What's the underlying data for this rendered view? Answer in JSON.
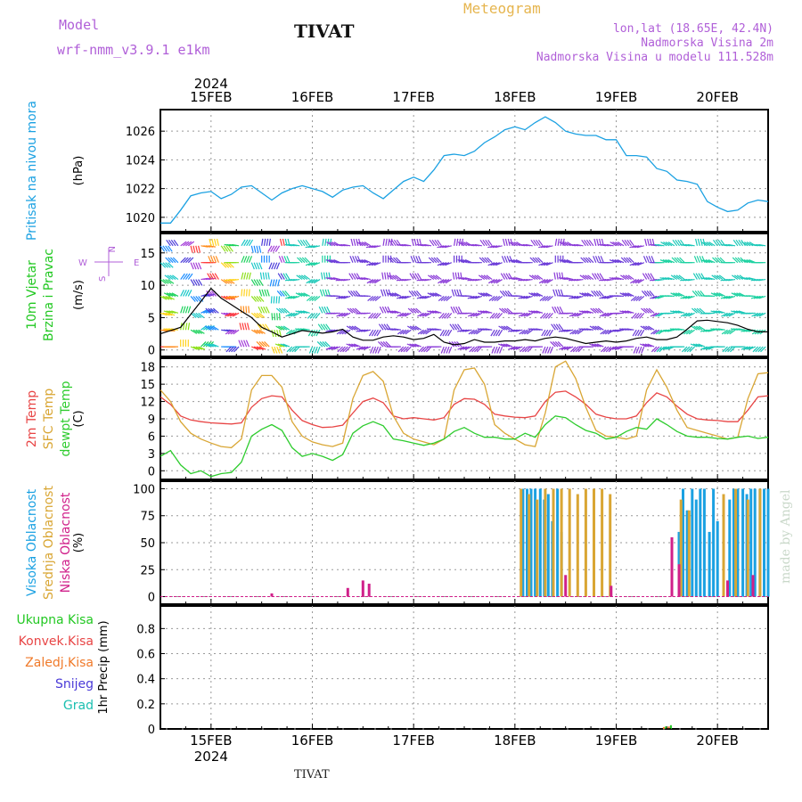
{
  "header": {
    "model_label": "Model",
    "model_name": "wrf-nmm_v3.9.1 e1km",
    "station": "TIVAT",
    "product": "Meteogram",
    "lonlat": "lon,lat (18.65E, 42.4N)",
    "altitude": "Nadmorska Visina 2m",
    "model_altitude": "Nadmorska Visina u modelu 111.528m",
    "watermark": "made by Angel",
    "footer_station": "TIVAT"
  },
  "dates": {
    "year": "2024",
    "labels": [
      "15FEB",
      "16FEB",
      "17FEB",
      "18FEB",
      "19FEB",
      "20FEB"
    ]
  },
  "colors": {
    "pressure": "#1ba1e2",
    "temp2m": "#e84545",
    "sfc": "#d9a634",
    "dewpt": "#2ecc2e",
    "wind_dir": "#b05fd8",
    "total_precip": "#22c822",
    "conv_precip": "#e84545",
    "frz_precip": "#f07a2a",
    "snow": "#4a3ad8",
    "hail": "#1abfb0",
    "high_cloud": "#1ba1e2",
    "mid_cloud": "#d9a634",
    "low_cloud": "#d0208a",
    "header_purple": "#b05fd8",
    "header_gold": "#e6b54e"
  },
  "chart_data": [
    {
      "type": "line",
      "panel": "pressure",
      "ylabel_lines": [
        "Pritisak na nivou mora"
      ],
      "unit": "(hPa)",
      "ylim": [
        1019,
        1027.5
      ],
      "yticks": [
        1020,
        1022,
        1024,
        1026
      ],
      "grid": true,
      "x_days": [
        14.5,
        14.6,
        14.7,
        14.8,
        14.9,
        15.0,
        15.1,
        15.2,
        15.3,
        15.4,
        15.5,
        15.6,
        15.7,
        15.8,
        15.9,
        16.0,
        16.1,
        16.2,
        16.3,
        16.4,
        16.5,
        16.6,
        16.7,
        16.8,
        16.9,
        17.0,
        17.1,
        17.2,
        17.3,
        17.4,
        17.5,
        17.6,
        17.7,
        17.8,
        17.9,
        18.0,
        18.1,
        18.2,
        18.3,
        18.4,
        18.5,
        18.6,
        18.7,
        18.8,
        18.9,
        19.0,
        19.1,
        19.2,
        19.3,
        19.4,
        19.5,
        19.6,
        19.7,
        19.8,
        19.9,
        20.0,
        20.1,
        20.2,
        20.3,
        20.4,
        20.5
      ],
      "series": [
        {
          "key": "pressure",
          "values": [
            1019.6,
            1019.6,
            1020.5,
            1021.5,
            1021.7,
            1021.8,
            1021.3,
            1021.6,
            1022.1,
            1022.2,
            1021.7,
            1021.2,
            1021.7,
            1022.0,
            1022.2,
            1022.0,
            1021.8,
            1021.4,
            1021.9,
            1022.1,
            1022.2,
            1021.7,
            1021.3,
            1021.9,
            1022.5,
            1022.8,
            1022.5,
            1023.3,
            1024.3,
            1024.4,
            1024.3,
            1024.6,
            1025.2,
            1025.6,
            1026.1,
            1026.3,
            1026.1,
            1026.6,
            1027.0,
            1026.6,
            1026.0,
            1025.8,
            1025.7,
            1025.7,
            1025.4,
            1025.4,
            1024.3,
            1024.3,
            1024.2,
            1023.4,
            1023.2,
            1022.6,
            1022.5,
            1022.3,
            1021.1,
            1020.7,
            1020.4,
            1020.5,
            1021.0,
            1021.2,
            1021.1
          ]
        }
      ]
    },
    {
      "type": "line",
      "panel": "wind",
      "ylabel_lines": [
        "10m Vjetar",
        "Brzina i Pravac"
      ],
      "unit": "(m/s)",
      "ylim": [
        -1,
        18
      ],
      "yticks": [
        0,
        5,
        10,
        15
      ],
      "grid": true,
      "compass": {
        "north": "N",
        "east": "E",
        "south": "S",
        "west": "W"
      },
      "x_days": [
        14.5,
        14.6,
        14.7,
        14.8,
        14.9,
        15.0,
        15.1,
        15.2,
        15.3,
        15.4,
        15.5,
        15.6,
        15.7,
        15.8,
        15.9,
        16.0,
        16.1,
        16.2,
        16.3,
        16.4,
        16.5,
        16.6,
        16.7,
        16.8,
        16.9,
        17.0,
        17.1,
        17.2,
        17.3,
        17.4,
        17.5,
        17.6,
        17.7,
        17.8,
        17.9,
        18.0,
        18.1,
        18.2,
        18.3,
        18.4,
        18.5,
        18.6,
        18.7,
        18.8,
        18.9,
        19.0,
        19.1,
        19.2,
        19.3,
        19.4,
        19.5,
        19.6,
        19.7,
        19.8,
        19.9,
        20.0,
        20.1,
        20.2,
        20.3,
        20.4,
        20.5
      ],
      "series": [
        {
          "key": "wind_speed",
          "values": [
            2.5,
            3.0,
            3.5,
            5.5,
            7.5,
            9.5,
            8.0,
            7.0,
            6.0,
            5.0,
            3.5,
            2.8,
            2.0,
            2.5,
            3.0,
            2.8,
            2.6,
            2.8,
            3.2,
            2.0,
            1.5,
            1.5,
            2.0,
            2.2,
            2.0,
            1.6,
            1.8,
            2.4,
            1.2,
            0.8,
            1.0,
            1.6,
            1.2,
            1.2,
            1.4,
            1.4,
            1.6,
            1.4,
            1.8,
            2.0,
            1.8,
            1.4,
            1.0,
            1.2,
            1.4,
            1.2,
            1.4,
            1.8,
            2.0,
            1.6,
            1.6,
            2.0,
            3.2,
            4.5,
            4.6,
            4.4,
            4.2,
            3.8,
            3.2,
            2.8,
            2.8
          ]
        },
        {
          "key": "wind_dir",
          "values": [
            4,
            12,
            16,
            5,
            2,
            13,
            4,
            10,
            15,
            5,
            14,
            7,
            13,
            10,
            12,
            9,
            14,
            11,
            10,
            13,
            11,
            9,
            14,
            12,
            10,
            13,
            10,
            12,
            9,
            14,
            11,
            10,
            12,
            9,
            13,
            11,
            10,
            12,
            9,
            14,
            11,
            10,
            12,
            13,
            10,
            11,
            12,
            9,
            13,
            10,
            11,
            12,
            10,
            13,
            11,
            12,
            10,
            12,
            11,
            10,
            12
          ]
        }
      ]
    },
    {
      "type": "line",
      "panel": "temperature",
      "ylabel_lines": [
        "2m Temp",
        "SFC Temp",
        "dewpt Temp"
      ],
      "unit": "(C)",
      "ylim": [
        -1.5,
        19.5
      ],
      "yticks": [
        0,
        3,
        6,
        9,
        12,
        15,
        18
      ],
      "grid": true,
      "x_days": [
        14.5,
        14.6,
        14.7,
        14.8,
        14.9,
        15.0,
        15.1,
        15.2,
        15.3,
        15.4,
        15.5,
        15.6,
        15.7,
        15.8,
        15.9,
        16.0,
        16.1,
        16.2,
        16.3,
        16.4,
        16.5,
        16.6,
        16.7,
        16.8,
        16.9,
        17.0,
        17.1,
        17.2,
        17.3,
        17.4,
        17.5,
        17.6,
        17.7,
        17.8,
        17.9,
        18.0,
        18.1,
        18.2,
        18.3,
        18.4,
        18.5,
        18.6,
        18.7,
        18.8,
        18.9,
        19.0,
        19.1,
        19.2,
        19.3,
        19.4,
        19.5,
        19.6,
        19.7,
        19.8,
        19.9,
        20.0,
        20.1,
        20.2,
        20.3,
        20.4,
        20.5
      ],
      "series": [
        {
          "name": "2m Temp",
          "key": "temp2m",
          "values": [
            12.8,
            11.5,
            9.5,
            8.8,
            8.5,
            8.3,
            8.2,
            8.1,
            8.3,
            11.0,
            12.5,
            13.0,
            12.8,
            10.5,
            8.7,
            8.0,
            7.5,
            7.6,
            7.9,
            10.0,
            12.0,
            12.6,
            11.8,
            9.5,
            9.0,
            9.2,
            9.0,
            8.8,
            9.2,
            11.5,
            12.5,
            12.4,
            11.5,
            9.8,
            9.5,
            9.3,
            9.2,
            9.5,
            12.0,
            13.6,
            13.8,
            12.8,
            11.5,
            9.8,
            9.3,
            9.0,
            9.0,
            9.5,
            11.8,
            13.5,
            12.8,
            11.2,
            9.8,
            9.0,
            8.8,
            8.7,
            8.5,
            8.5,
            10.5,
            12.8,
            13.0
          ]
        },
        {
          "name": "SFC Temp",
          "key": "sfc",
          "values": [
            14.0,
            12.0,
            8.5,
            6.5,
            5.5,
            4.8,
            4.2,
            4.0,
            5.5,
            14.0,
            16.5,
            16.5,
            14.5,
            8.5,
            6.0,
            5.0,
            4.5,
            4.2,
            4.8,
            12.5,
            16.5,
            17.2,
            15.5,
            9.5,
            6.5,
            5.5,
            5.0,
            4.5,
            5.5,
            14.0,
            17.5,
            17.8,
            15.0,
            8.0,
            6.5,
            5.5,
            4.5,
            4.2,
            10.0,
            18.0,
            19.0,
            16.0,
            11.0,
            7.0,
            6.0,
            5.8,
            5.5,
            6.0,
            14.0,
            17.5,
            14.5,
            10.5,
            7.5,
            7.0,
            6.5,
            6.0,
            5.5,
            5.8,
            12.5,
            16.8,
            17.0
          ]
        },
        {
          "name": "dewpt Temp",
          "key": "dewpt",
          "values": [
            2.5,
            3.5,
            1.0,
            -0.5,
            0.0,
            -1.0,
            -0.5,
            -0.3,
            1.5,
            6.0,
            7.2,
            8.0,
            7.0,
            4.0,
            2.5,
            3.0,
            2.5,
            1.8,
            2.8,
            6.5,
            7.8,
            8.5,
            7.8,
            5.5,
            5.2,
            4.8,
            4.4,
            4.8,
            5.5,
            6.8,
            7.5,
            6.5,
            5.8,
            5.8,
            5.5,
            5.5,
            6.5,
            5.8,
            8.0,
            9.5,
            9.2,
            8.0,
            7.0,
            6.5,
            5.5,
            5.8,
            6.8,
            7.5,
            7.2,
            9.0,
            8.0,
            6.8,
            6.0,
            5.8,
            5.8,
            5.6,
            5.5,
            5.8,
            6.0,
            5.6,
            5.8
          ]
        }
      ]
    },
    {
      "type": "bar",
      "panel": "clouds",
      "ylabel_lines": [
        "Visoka Oblacnost",
        "Srednja Oblacnost",
        "Niska Oblacnost"
      ],
      "unit": "(%)",
      "ylim": [
        -7,
        107
      ],
      "yticks": [
        0,
        25,
        50,
        75,
        100
      ],
      "grid": true,
      "series": [
        {
          "name": "Visoka Oblacnost",
          "key": "high_cloud",
          "x_days": [
            18.08,
            18.12,
            18.16,
            18.2,
            18.25,
            18.29,
            18.33,
            18.37,
            18.42,
            18.46,
            19.62,
            19.66,
            19.7,
            19.75,
            19.79,
            19.83,
            19.87,
            19.92,
            19.96,
            20.0,
            20.12,
            20.16,
            20.2,
            20.25,
            20.29,
            20.33,
            20.37,
            20.42,
            20.46,
            20.5
          ],
          "values": [
            100,
            100,
            100,
            100,
            100,
            90,
            95,
            70,
            100,
            60,
            60,
            100,
            80,
            100,
            90,
            100,
            100,
            60,
            100,
            70,
            90,
            100,
            100,
            100,
            95,
            100,
            100,
            100,
            100,
            100
          ]
        },
        {
          "name": "Srednja Oblacnost",
          "key": "mid_cloud",
          "x_days": [
            18.06,
            18.14,
            18.22,
            18.3,
            18.38,
            18.46,
            18.54,
            18.62,
            18.7,
            18.78,
            18.86,
            18.94,
            19.64,
            19.72,
            20.06,
            20.18,
            20.3,
            20.42
          ],
          "values": [
            100,
            95,
            90,
            100,
            100,
            100,
            100,
            95,
            100,
            100,
            100,
            95,
            90,
            80,
            95,
            100,
            90,
            100
          ]
        },
        {
          "name": "Niska Oblacnost",
          "key": "low_cloud",
          "x_days": [
            15.6,
            16.35,
            16.5,
            16.56,
            18.5,
            18.95,
            19.55,
            19.62,
            20.1,
            20.35
          ],
          "values": [
            3,
            8,
            15,
            12,
            20,
            10,
            55,
            30,
            15,
            20
          ]
        }
      ]
    },
    {
      "type": "bar",
      "panel": "precip",
      "ylabel_lines": [
        "Ukupna Kisa",
        "Konvek.Kisa",
        "Zaledj.Kisa",
        "Snijeg",
        "Grad"
      ],
      "unit": "1hr Precip (mm)",
      "ylim": [
        0,
        0.98
      ],
      "yticks": [
        0,
        0.2,
        0.4,
        0.6,
        0.8
      ],
      "ytick_labels": [
        "0",
        "0.2",
        "0.4",
        "0.6",
        "0.8"
      ],
      "grid": true,
      "series": [
        {
          "name": "Ukupna Kisa",
          "key": "total_precip",
          "x_days": [
            19.49,
            19.54
          ],
          "values": [
            0.02,
            0.03
          ]
        },
        {
          "name": "Konvek.Kisa",
          "key": "conv_precip",
          "x_days": [
            19.51
          ],
          "values": [
            0.01
          ]
        },
        {
          "name": "Zaledj.Kisa",
          "key": "frz_precip",
          "x_days": [
            19.47,
            19.52
          ],
          "values": [
            0.015,
            0.02
          ]
        },
        {
          "name": "Snijeg",
          "key": "snow",
          "x_days": [],
          "values": []
        },
        {
          "name": "Grad",
          "key": "hail",
          "x_days": [],
          "values": []
        }
      ]
    }
  ]
}
